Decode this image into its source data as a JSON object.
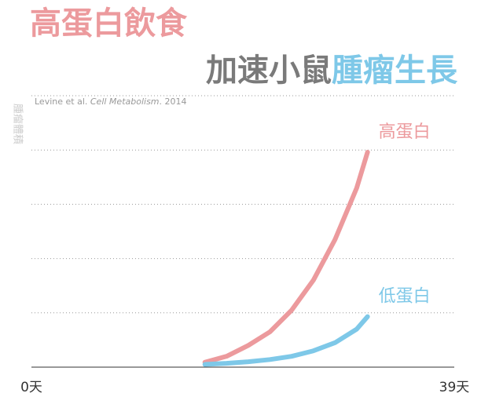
{
  "chart_data": {
    "type": "line",
    "title": "高蛋白飲食",
    "subtitle_parts": [
      {
        "text": "加速小鼠",
        "color": "#7a7a7a"
      },
      {
        "text": "腫瘤生長",
        "color": "#7ec8e8"
      }
    ],
    "title_color": "#ec9a9d",
    "ylabel": "腫瘤體積",
    "source": {
      "authors": "Levine et al. ",
      "journal": "Cell Metabolism",
      "rest": ". 2014"
    },
    "x": [
      16,
      18,
      20,
      22,
      24,
      26,
      28,
      30,
      31
    ],
    "series": [
      {
        "name": "高蛋白",
        "color": "#ec9a9d",
        "values": [
          0.09,
          0.2,
          0.4,
          0.65,
          1.05,
          1.6,
          2.35,
          3.3,
          3.96
        ]
      },
      {
        "name": "低蛋白",
        "color": "#7ec8e8",
        "values": [
          0.05,
          0.07,
          0.1,
          0.14,
          0.2,
          0.3,
          0.45,
          0.7,
          0.93
        ]
      }
    ],
    "xlim": [
      0,
      39
    ],
    "xticks": [
      {
        "value": 0,
        "label": "0天"
      },
      {
        "value": 39,
        "label": "39天"
      }
    ],
    "ylim": [
      0,
      5
    ],
    "grid": true
  }
}
